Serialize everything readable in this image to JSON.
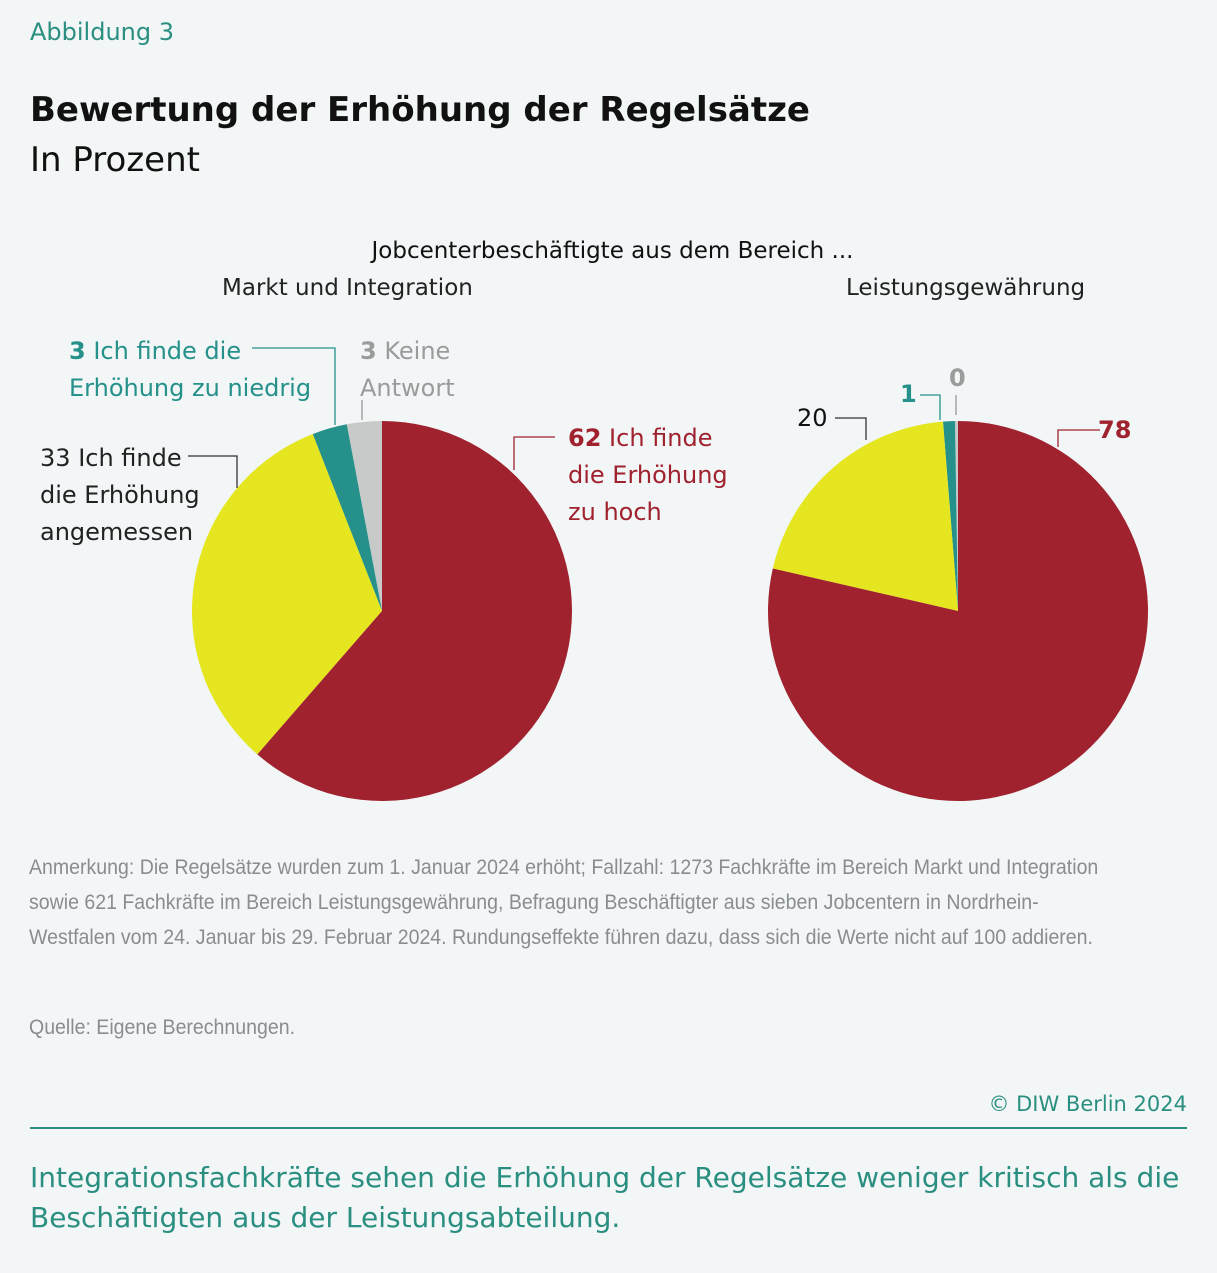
{
  "figure_label": "Abbildung 3",
  "title": "Bewertung der Erhöhung der Regelsätze",
  "subtitle": "In Prozent",
  "colors": {
    "zu_hoch": "#a0222f",
    "angemessen": "#e5e620",
    "zu_niedrig": "#25918a",
    "keine_antwort": "#c8cac9",
    "accent": "#2a8f80"
  },
  "chart_data": [
    {
      "type": "pie",
      "group_title": "Jobcenterbeschäftigte aus dem Bereich ...",
      "title": "Markt und Integration",
      "slices": [
        {
          "value": 62,
          "label": "Ich finde die Erhöhung zu hoch",
          "color": "#a0222f"
        },
        {
          "value": 33,
          "label": "Ich finde die Erhöhung angemessen",
          "color": "#e5e620"
        },
        {
          "value": 3,
          "label": "Ich finde die Erhöhung zu niedrig",
          "color": "#25918a"
        },
        {
          "value": 3,
          "label": "Keine Antwort",
          "color": "#c8cac9"
        }
      ]
    },
    {
      "type": "pie",
      "title": "Leistungsgewährung",
      "slices": [
        {
          "value": 78,
          "color": "#a0222f"
        },
        {
          "value": 20,
          "color": "#e5e620"
        },
        {
          "value": 1,
          "color": "#25918a"
        },
        {
          "value": 0,
          "color": "#c8cac9"
        }
      ]
    }
  ],
  "note": "Anmerkung: Die Regelsätze wurden zum 1. Januar 2024 erhöht; Fallzahl: 1273 Fachkräfte im Bereich Markt und Integration sowie 621 Fachkräfte im Bereich Leistungsgewährung, Befragung Beschäftigter aus sieben Jobcentern in Nordrhein-Westfalen vom 24. Januar bis 29. Februar 2024. Rundungseffekte führen dazu, dass sich die Werte nicht auf 100 addieren.",
  "source": "Quelle: Eigene Berechnungen.",
  "copyright": "© DIW Berlin 2024",
  "takeaway": "Integrationsfachkräfte sehen die Erhöhung der Regelsätze weniger kritisch als die Beschäftigten aus der Leistungsabteilung."
}
